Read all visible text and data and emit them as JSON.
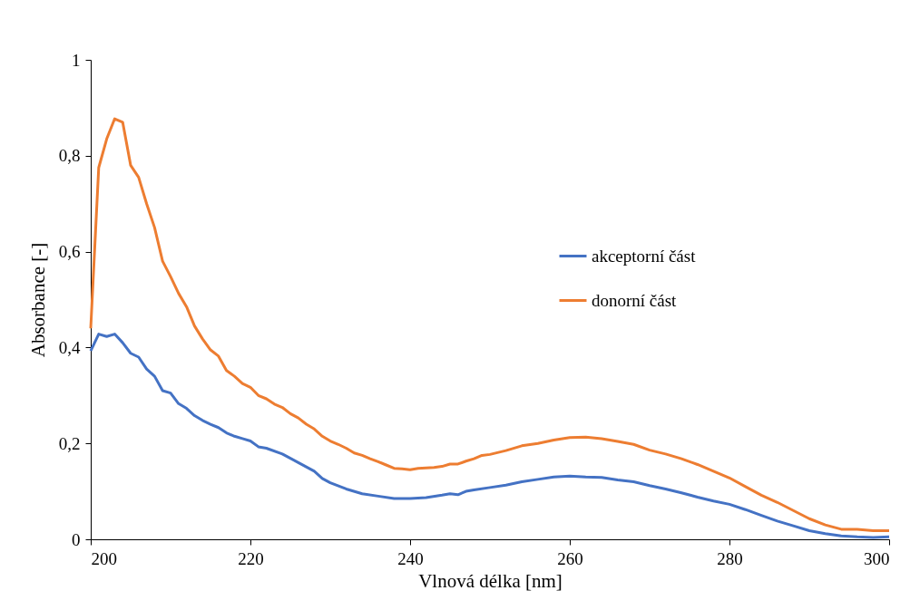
{
  "chart_data": {
    "type": "line",
    "xlabel": "Vlnová délka [nm]",
    "ylabel": "Absorbance [-]",
    "xlim": [
      200,
      300
    ],
    "xticks": [
      200,
      220,
      240,
      260,
      280,
      300
    ],
    "ylim": [
      0,
      1
    ],
    "yticks": [
      0,
      {
        "value": 0.2,
        "label": "0,2"
      },
      {
        "value": 0.4,
        "label": "0,4"
      },
      {
        "value": 0.6,
        "label": "0,6"
      },
      {
        "value": 0.8,
        "label": "0,8"
      },
      1
    ],
    "grid": false,
    "legend": "right",
    "marker": "none",
    "line_style": "solid",
    "series": [
      {
        "name": "akceptorní část",
        "color": "#4472c4",
        "x": [
          200,
          201,
          202,
          203,
          204,
          205,
          206,
          207,
          208,
          209,
          210,
          211,
          212,
          213,
          214,
          215,
          216,
          217,
          218,
          219,
          220,
          221,
          222,
          224,
          226,
          228,
          229,
          230,
          232,
          234,
          236,
          238,
          240,
          242,
          244,
          245,
          246,
          247,
          248,
          250,
          252,
          254,
          256,
          258,
          260,
          262,
          264,
          266,
          268,
          270,
          272,
          274,
          276,
          278,
          280,
          282,
          284,
          286,
          288,
          290,
          292,
          294,
          296,
          298,
          300
        ],
        "values": [
          0.393,
          0.428,
          0.423,
          0.428,
          0.41,
          0.388,
          0.38,
          0.355,
          0.34,
          0.31,
          0.305,
          0.283,
          0.273,
          0.258,
          0.248,
          0.24,
          0.233,
          0.222,
          0.215,
          0.21,
          0.205,
          0.193,
          0.19,
          0.178,
          0.16,
          0.142,
          0.127,
          0.118,
          0.105,
          0.095,
          0.09,
          0.085,
          0.085,
          0.087,
          0.092,
          0.095,
          0.093,
          0.1,
          0.103,
          0.108,
          0.113,
          0.12,
          0.125,
          0.13,
          0.132,
          0.13,
          0.129,
          0.124,
          0.12,
          0.112,
          0.105,
          0.097,
          0.088,
          0.08,
          0.073,
          0.062,
          0.05,
          0.038,
          0.028,
          0.018,
          0.012,
          0.007,
          0.005,
          0.004,
          0.005
        ]
      },
      {
        "name": "donorní část",
        "color": "#ed7d31",
        "x": [
          200,
          201,
          202,
          203,
          204,
          205,
          206,
          207,
          208,
          209,
          210,
          211,
          212,
          213,
          214,
          215,
          216,
          217,
          218,
          219,
          220,
          221,
          222,
          223,
          224,
          225,
          226,
          227,
          228,
          229,
          230,
          231,
          232,
          233,
          234,
          235,
          236,
          237,
          238,
          239,
          240,
          241,
          242,
          243,
          244,
          245,
          246,
          247,
          248,
          249,
          250,
          252,
          254,
          256,
          258,
          260,
          262,
          264,
          266,
          268,
          270,
          272,
          274,
          276,
          278,
          280,
          282,
          284,
          286,
          288,
          290,
          292,
          294,
          296,
          298,
          300
        ],
        "values": [
          0.44,
          0.775,
          0.835,
          0.877,
          0.87,
          0.78,
          0.755,
          0.7,
          0.65,
          0.58,
          0.548,
          0.513,
          0.485,
          0.445,
          0.418,
          0.395,
          0.382,
          0.352,
          0.34,
          0.325,
          0.317,
          0.3,
          0.293,
          0.282,
          0.275,
          0.262,
          0.253,
          0.24,
          0.23,
          0.215,
          0.205,
          0.198,
          0.19,
          0.18,
          0.175,
          0.168,
          0.162,
          0.155,
          0.148,
          0.147,
          0.145,
          0.148,
          0.149,
          0.15,
          0.152,
          0.157,
          0.157,
          0.163,
          0.168,
          0.175,
          0.177,
          0.185,
          0.195,
          0.2,
          0.207,
          0.212,
          0.213,
          0.21,
          0.204,
          0.198,
          0.186,
          0.178,
          0.168,
          0.156,
          0.142,
          0.128,
          0.11,
          0.092,
          0.077,
          0.06,
          0.043,
          0.03,
          0.021,
          0.021,
          0.018,
          0.018
        ]
      }
    ]
  }
}
